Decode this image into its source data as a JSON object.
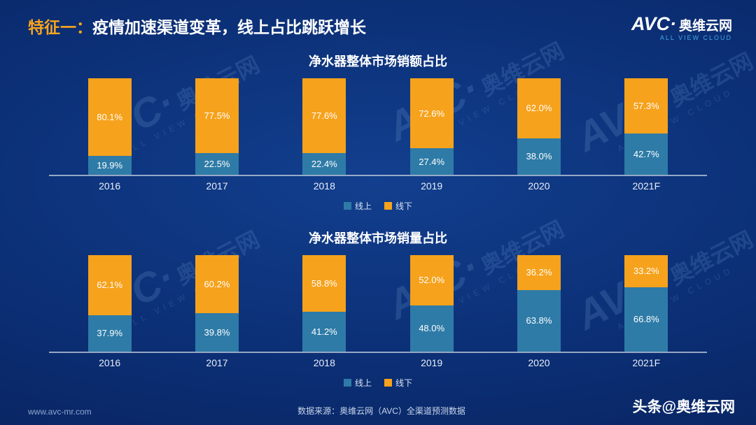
{
  "header": {
    "tag": "特征一：",
    "title": "疫情加速渠道变革，线上占比跳跃增长"
  },
  "logo": {
    "avc": "AVC·",
    "cn": "奥维云网",
    "sub": "ALL VIEW CLOUD"
  },
  "watermark": {
    "avc": "AVC·",
    "cn": "奥维云网",
    "sub": "ALL VIEW CLOUD"
  },
  "chart_data": [
    {
      "type": "bar",
      "stacked": true,
      "title": "净水器整体市场销额占比",
      "categories": [
        "2016",
        "2017",
        "2018",
        "2019",
        "2020",
        "2021F"
      ],
      "series": [
        {
          "name": "线上",
          "color": "#2e7ba7",
          "values": [
            19.9,
            22.5,
            22.4,
            27.4,
            38.0,
            42.7
          ]
        },
        {
          "name": "线下",
          "color": "#f6a21c",
          "values": [
            80.1,
            77.5,
            77.6,
            72.6,
            62.0,
            57.3
          ]
        }
      ],
      "ylim": [
        0,
        100
      ],
      "grid": false,
      "legend_position": "bottom",
      "value_label_format": "percent"
    },
    {
      "type": "bar",
      "stacked": true,
      "title": "净水器整体市场销量占比",
      "categories": [
        "2016",
        "2017",
        "2018",
        "2019",
        "2020",
        "2021F"
      ],
      "series": [
        {
          "name": "线上",
          "color": "#2e7ba7",
          "values": [
            37.9,
            39.8,
            41.2,
            48.0,
            63.8,
            66.8
          ]
        },
        {
          "name": "线下",
          "color": "#f6a21c",
          "values": [
            62.1,
            60.2,
            58.8,
            52.0,
            36.2,
            33.2
          ]
        }
      ],
      "ylim": [
        0,
        100
      ],
      "grid": false,
      "legend_position": "bottom",
      "value_label_format": "percent"
    }
  ],
  "footer": {
    "website": "www.avc-mr.com",
    "source": "数据来源：奥维云网（AVC）全渠道预测数据",
    "social": "头条@奥维云网"
  }
}
